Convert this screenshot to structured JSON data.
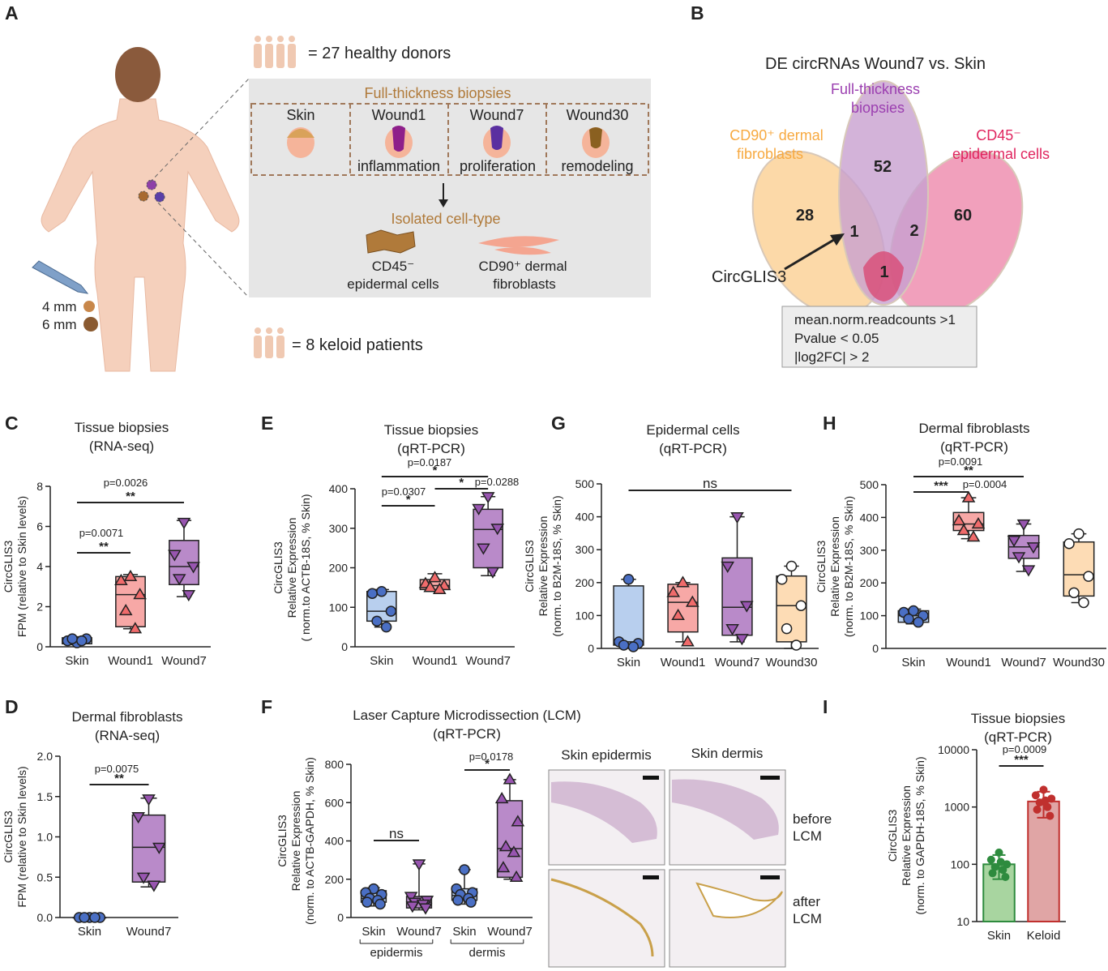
{
  "panel_labels": [
    "A",
    "B",
    "C",
    "D",
    "E",
    "F",
    "G",
    "H",
    "I"
  ],
  "panel_a": {
    "donors": "= 27 healthy donors",
    "patients": "= 8 keloid patients",
    "biopsies_title": "Full-thickness biopsies",
    "samples": [
      "Skin",
      "Wound1",
      "Wound7",
      "Wound30"
    ],
    "stages": [
      "inflammation",
      "proliferation",
      "remodeling"
    ],
    "isolated_title": "Isolated cell-type",
    "cell_types": [
      [
        "CD45⁻",
        "epidermal cells"
      ],
      [
        "CD90⁺ dermal",
        "fibroblasts"
      ]
    ],
    "punch_sizes": [
      "4 mm",
      "6 mm"
    ]
  },
  "panel_b": {
    "title": "DE circRNAs Wound7 vs. Skin",
    "sets": [
      {
        "name": [
          "CD90⁺ dermal",
          "fibroblasts"
        ],
        "color": "#f7a940"
      },
      {
        "name": [
          "Full-thickness",
          "biopsies"
        ],
        "color": "#9b3fb0"
      },
      {
        "name": [
          "CD45⁻",
          "epidermal cells"
        ],
        "color": "#e0245e"
      }
    ],
    "counts": [
      28,
      52,
      60,
      1,
      2,
      1
    ],
    "highlight": "CircGLIS3",
    "criteria": [
      "mean.norm.readcounts >1",
      "Pvalue < 0.05",
      "|log2FC| > 2"
    ]
  },
  "panel_f_images": {
    "columns": [
      "Skin epidermis",
      "Skin dermis"
    ],
    "rows": [
      [
        "before",
        "LCM"
      ],
      [
        "after",
        "LCM"
      ]
    ]
  },
  "chart_data": [
    {
      "type": "box",
      "title": [
        "Tissue biopsies",
        "(RNA-seq)"
      ],
      "ylabel": [
        "CircGLIS3",
        "FPM (relative to Skin levels)"
      ],
      "categories": [
        "Skin",
        "Wound1",
        "Wound7"
      ],
      "ylim": [
        0,
        8
      ],
      "yticks": [
        0,
        2,
        4,
        6,
        8
      ],
      "fills": [
        "#b8cfee",
        "#f7a8a6",
        "#b98ac9"
      ],
      "point_colors": [
        "#4a6fc4",
        "#f06b6b",
        "#9855b0"
      ],
      "markers": [
        "circle",
        "triangle-up",
        "triangle-down"
      ],
      "points": [
        [
          0.2,
          0.3,
          0.4,
          0.4,
          0.3
        ],
        [
          3.5,
          3.3,
          2.6,
          1.8,
          0.9
        ],
        [
          6.2,
          4.6,
          4.0,
          3.4,
          2.6
        ]
      ],
      "boxes": [
        {
          "min": 0.1,
          "q1": 0.15,
          "median": 0.3,
          "q3": 0.45,
          "max": 0.5
        },
        {
          "min": 0.9,
          "q1": 1.0,
          "median": 2.6,
          "q3": 3.5,
          "max": 3.6
        },
        {
          "min": 2.5,
          "q1": 3.1,
          "median": 4.0,
          "q3": 5.3,
          "max": 6.3
        }
      ],
      "brackets": [
        {
          "from": 0,
          "to": 1,
          "stars": "**",
          "label": "p=0.0071"
        },
        {
          "from": 0,
          "to": 2,
          "stars": "**",
          "label": "p=0.0026"
        }
      ]
    },
    {
      "type": "box",
      "title": [
        "Dermal fibroblasts",
        "(RNA-seq)"
      ],
      "ylabel": [
        "CircGLIS3",
        "FPM (relative to Skin levels)"
      ],
      "categories": [
        "Skin",
        "Wound7"
      ],
      "ylim": [
        0,
        2
      ],
      "yticks": [
        {
          "value": 0,
          "label": "0.0"
        },
        {
          "value": 0.5,
          "label": "0.5"
        },
        {
          "value": 1,
          "label": "1.0"
        },
        {
          "value": 1.5,
          "label": "1.5"
        },
        {
          "value": 2,
          "label": "2.0"
        }
      ],
      "fills": [
        "#b8cfee",
        "#b98ac9"
      ],
      "point_colors": [
        "#4a6fc4",
        "#9855b0"
      ],
      "markers": [
        "circle",
        "triangle-down"
      ],
      "points": [
        [
          0,
          0,
          0,
          0,
          0
        ],
        [
          1.47,
          1.25,
          0.87,
          0.5,
          0.4
        ]
      ],
      "boxes": [
        {
          "min": 0,
          "q1": 0,
          "median": 0,
          "q3": 0,
          "max": 0
        },
        {
          "min": 0.38,
          "q1": 0.44,
          "median": 0.87,
          "q3": 1.27,
          "max": 1.48
        }
      ],
      "brackets": [
        {
          "from": 0,
          "to": 1,
          "stars": "**",
          "label": "p=0.0075"
        }
      ]
    },
    {
      "type": "box",
      "title": [
        "Tissue biopsies",
        "(qRT-PCR)"
      ],
      "ylabel": [
        "CircGLIS3",
        "Relative Expression",
        "( norm.to ACTB-18S, % Skin)"
      ],
      "categories": [
        "Skin",
        "Wound1",
        "Wound7"
      ],
      "ylim": [
        0,
        400
      ],
      "yticks": [
        0,
        100,
        200,
        300,
        400
      ],
      "fills": [
        "#b8cfee",
        "#f7a8a6",
        "#b98ac9"
      ],
      "point_colors": [
        "#4a6fc4",
        "#f06b6b",
        "#9855b0"
      ],
      "markers": [
        "circle",
        "triangle-up",
        "triangle-down"
      ],
      "points": [
        [
          140,
          135,
          90,
          65,
          50
        ],
        [
          175,
          160,
          155,
          150,
          145
        ],
        [
          380,
          350,
          300,
          250,
          190
        ]
      ],
      "boxes": [
        {
          "min": 50,
          "q1": 65,
          "median": 90,
          "q3": 140,
          "max": 145
        },
        {
          "min": 140,
          "q1": 145,
          "median": 155,
          "q3": 170,
          "max": 185
        },
        {
          "min": 180,
          "q1": 200,
          "median": 297,
          "q3": 348,
          "max": 380
        }
      ],
      "brackets": [
        {
          "from": 0,
          "to": 1,
          "stars": "*",
          "label": "p=0.0307"
        },
        {
          "from": 1,
          "to": 2,
          "stars": "*",
          "label": "p=0.0288"
        },
        {
          "from": 0,
          "to": 2,
          "stars": "*",
          "label": "p=0.0187"
        }
      ]
    },
    {
      "type": "box",
      "title": [
        "Epidermal cells",
        "(qRT-PCR)"
      ],
      "ylabel": [
        "CircGLIS3",
        "Relative Expression",
        "(norm. to B2M-18S, % Skin)"
      ],
      "categories": [
        "Skin",
        "Wound1",
        "Wound7",
        "Wound30"
      ],
      "ylim": [
        0,
        500
      ],
      "yticks": [
        0,
        100,
        200,
        300,
        400,
        500
      ],
      "fills": [
        "#b8cfee",
        "#f7a8a6",
        "#b98ac9",
        "#fddcb5"
      ],
      "point_colors": [
        "#4a6fc4",
        "#f06b6b",
        "#9855b0",
        "#ffffff"
      ],
      "markers": [
        "circle",
        "triangle-up",
        "triangle-down",
        "circle-open"
      ],
      "points": [
        [
          210,
          20,
          15,
          10,
          5
        ],
        [
          200,
          170,
          140,
          100,
          20
        ],
        [
          400,
          250,
          130,
          60,
          30
        ],
        [
          250,
          210,
          130,
          60,
          10
        ]
      ],
      "boxes": [
        {
          "min": 5,
          "q1": 10,
          "median": 20,
          "q3": 190,
          "max": 210
        },
        {
          "min": 20,
          "q1": 50,
          "median": 140,
          "q3": 195,
          "max": 200
        },
        {
          "min": 20,
          "q1": 40,
          "median": 125,
          "q3": 275,
          "max": 400
        },
        {
          "min": 0,
          "q1": 20,
          "median": 130,
          "q3": 220,
          "max": 250
        }
      ],
      "brackets": [
        {
          "from": 0,
          "to": 3,
          "stars": "ns"
        }
      ]
    },
    {
      "type": "box",
      "title": [
        "Dermal fibroblasts",
        "(qRT-PCR)"
      ],
      "ylabel": [
        "CircGLIS3",
        "Relative Expression",
        "(norm. to B2M-18S, % Skin)"
      ],
      "categories": [
        "Skin",
        "Wound1",
        "Wound7",
        "Wound30"
      ],
      "ylim": [
        0,
        500
      ],
      "yticks": [
        0,
        100,
        200,
        300,
        400,
        500
      ],
      "fills": [
        "#b8cfee",
        "#f7a8a6",
        "#b98ac9",
        "#fddcb5"
      ],
      "point_colors": [
        "#4a6fc4",
        "#f06b6b",
        "#9855b0",
        "#ffffff"
      ],
      "markers": [
        "circle",
        "triangle-up",
        "triangle-down",
        "circle-open"
      ],
      "points": [
        [
          115,
          110,
          100,
          90,
          80
        ],
        [
          460,
          390,
          380,
          360,
          340
        ],
        [
          380,
          330,
          310,
          280,
          240
        ],
        [
          350,
          320,
          220,
          170,
          140
        ]
      ],
      "boxes": [
        {
          "min": 75,
          "q1": 80,
          "median": 100,
          "q3": 115,
          "max": 120
        },
        {
          "min": 335,
          "q1": 360,
          "median": 380,
          "q3": 415,
          "max": 460
        },
        {
          "min": 235,
          "q1": 275,
          "median": 310,
          "q3": 345,
          "max": 380
        },
        {
          "min": 140,
          "q1": 160,
          "median": 225,
          "q3": 325,
          "max": 350
        }
      ],
      "brackets": [
        {
          "from": 0,
          "to": 1,
          "stars": "***",
          "label": "p=0.0004"
        },
        {
          "from": 0,
          "to": 2,
          "stars": "**",
          "label": "p=0.0091"
        }
      ]
    },
    {
      "type": "box",
      "title": [
        "Laser Capture Microdissection (LCM)",
        "(qRT-PCR)"
      ],
      "ylabel": [
        "CircGLIS3",
        "Relative Expression",
        "(norm. to ACTB-GAPDH, % Skin)"
      ],
      "categories": [
        "Skin",
        "Wound7",
        "Skin",
        "Wound7"
      ],
      "ylim": [
        0,
        800
      ],
      "yticks": [
        0,
        200,
        400,
        600,
        800
      ],
      "groups": [
        {
          "label": "epidermis",
          "from": 0,
          "to": 1
        },
        {
          "label": "dermis",
          "from": 2,
          "to": 3
        }
      ],
      "fills": [
        "#b8cfee",
        "#b98ac9",
        "#b8cfee",
        "#b98ac9"
      ],
      "point_colors": [
        "#4a6fc4",
        "#9855b0",
        "#4a6fc4",
        "#9855b0"
      ],
      "markers": [
        "circle",
        "triangle-down",
        "circle",
        "triangle-up"
      ],
      "points": [
        [
          150,
          130,
          120,
          100,
          90,
          80,
          70
        ],
        [
          280,
          110,
          90,
          80,
          70,
          60,
          50
        ],
        [
          250,
          150,
          130,
          120,
          100,
          90,
          80
        ],
        [
          720,
          620,
          500,
          370,
          340,
          260,
          210
        ]
      ],
      "boxes": [
        {
          "min": 60,
          "q1": 80,
          "median": 100,
          "q3": 140,
          "max": 155
        },
        {
          "min": 40,
          "q1": 50,
          "median": 80,
          "q3": 110,
          "max": 280
        },
        {
          "min": 70,
          "q1": 90,
          "median": 115,
          "q3": 150,
          "max": 250
        },
        {
          "min": 200,
          "q1": 210,
          "median": 360,
          "q3": 610,
          "max": 720
        }
      ],
      "brackets": [
        {
          "from": 0,
          "to": 1,
          "stars": "ns"
        },
        {
          "from": 2,
          "to": 3,
          "stars": "*",
          "label": "p=0.0178"
        }
      ]
    },
    {
      "type": "bar",
      "title": [
        "Tissue biopsies",
        "(qRT-PCR)"
      ],
      "ylabel": [
        "CircGLIS3",
        "Relative Expression",
        "(norm. to GAPDH-18S, % Skin)"
      ],
      "categories": [
        "Skin",
        "Keloid"
      ],
      "log": true,
      "ylim": [
        10,
        10000
      ],
      "yticks": [
        10,
        100,
        1000,
        10000
      ],
      "values": [
        100,
        1250
      ],
      "errors": [
        45,
        600
      ],
      "fills": [
        "#a8d5a0",
        "#e0a5a5"
      ],
      "point_colors": [
        "#2e8b3e",
        "#c0302e"
      ],
      "markers": [
        "circle",
        "circle"
      ],
      "points": [
        [
          160,
          120,
          100,
          90,
          80,
          70,
          60,
          110
        ],
        [
          2000,
          1600,
          1400,
          1200,
          1000,
          900,
          700,
          1300
        ]
      ],
      "brackets": [
        {
          "from": 0,
          "to": 1,
          "stars": "***",
          "label": "p=0.0009"
        }
      ]
    }
  ]
}
